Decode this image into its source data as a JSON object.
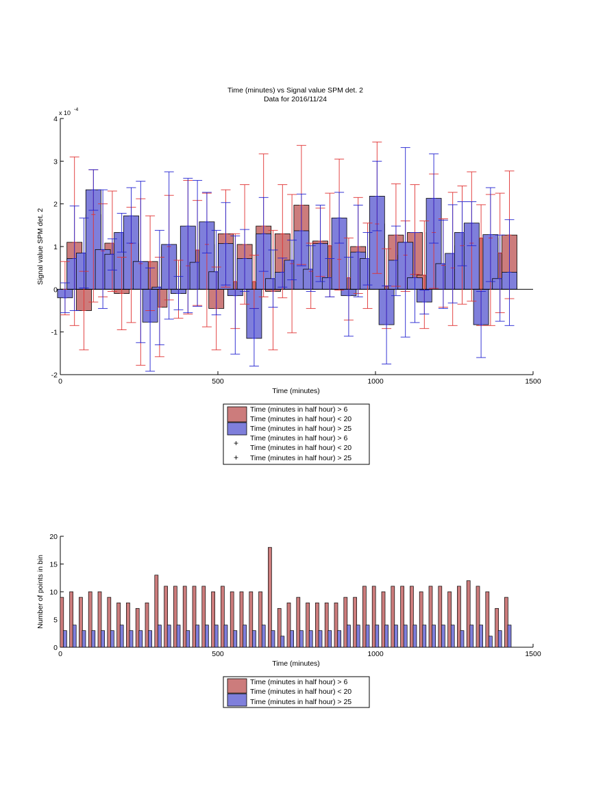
{
  "chart_data": [
    {
      "type": "bar",
      "title": "Time (minutes) vs Signal value SPM det. 2",
      "subtitle": "Data for 2016/11/24",
      "xlabel": "Time (minutes)",
      "ylabel": "Signal value SPM det. 2",
      "exponent_label": "x 10",
      "exponent_power": "-4",
      "xlim": [
        0,
        1500
      ],
      "ylim": [
        -2,
        4
      ],
      "y_scale_note": "values in units of 1e-4",
      "xticks": [
        0,
        500,
        1000,
        1500
      ],
      "yticks": [
        -2,
        -1,
        0,
        1,
        2,
        3,
        4
      ],
      "grid": false,
      "legend_position": "below",
      "series": [
        {
          "name": "Time (minutes in half hour) > 6 Time (minutes in half hour) < 20",
          "color": "#cc7c7c",
          "errorbar_color": "#e03030",
          "x": [
            15,
            45,
            75,
            105,
            135,
            165,
            195,
            225,
            255,
            285,
            315,
            345,
            375,
            405,
            435,
            465,
            495,
            525,
            555,
            585,
            615,
            645,
            675,
            705,
            735,
            765,
            795,
            825,
            855,
            885,
            915,
            945,
            975,
            1005,
            1035,
            1065,
            1095,
            1125,
            1155,
            1185,
            1215,
            1245,
            1275,
            1305,
            1335,
            1365,
            1395,
            1425
          ],
          "values": [
            0.0,
            1.1,
            -0.5,
            1.75,
            0.9,
            1.08,
            -0.1,
            1.07,
            0.6,
            0.65,
            -0.42,
            1.0,
            -0.1,
            0.55,
            0.92,
            1.05,
            -0.45,
            1.3,
            0.18,
            1.05,
            0.18,
            1.48,
            -0.05,
            1.3,
            0.6,
            1.97,
            0.42,
            1.13,
            1.02,
            0.7,
            0.27,
            1.0,
            0.72,
            1.53,
            0.07,
            1.27,
            0.8,
            1.33,
            0.33,
            1.33,
            0.56,
            0.5,
            1.02,
            1.08,
            1.2,
            1.2,
            0.85,
            1.27
          ],
          "err_low": [
            -0.6,
            -0.85,
            -1.42,
            -0.3,
            -0.18,
            -0.05,
            -0.95,
            -0.78,
            -1.78,
            -0.5,
            -1.58,
            -0.25,
            -0.68,
            -0.58,
            -0.38,
            -0.88,
            -1.42,
            0.05,
            -0.92,
            -0.35,
            -0.45,
            -0.18,
            -1.42,
            -0.2,
            -1.02,
            0.58,
            -0.45,
            0.3,
            -0.18,
            -0.02,
            -0.72,
            -0.1,
            -0.45,
            0.37,
            -0.92,
            0.07,
            -0.05,
            0.35,
            -0.92,
            0.02,
            -0.42,
            -0.85,
            -0.35,
            -0.28,
            -0.85,
            -0.85,
            -0.55,
            -0.22
          ],
          "err_high": [
            0.65,
            3.1,
            0.42,
            2.8,
            2.0,
            2.3,
            0.75,
            1.92,
            2.12,
            1.72,
            0.75,
            2.2,
            0.68,
            2.55,
            2.08,
            2.25,
            0.52,
            2.33,
            1.3,
            2.45,
            0.8,
            3.17,
            1.38,
            2.45,
            2.22,
            3.37,
            1.08,
            1.9,
            2.25,
            3.05,
            1.2,
            2.15,
            1.55,
            3.45,
            0.95,
            2.47,
            1.6,
            2.45,
            1.6,
            2.7,
            1.65,
            2.27,
            2.42,
            2.75,
            1.98,
            2.22,
            2.25,
            2.77
          ]
        },
        {
          "name": "Time (minutes in half hour) > 25",
          "color": "#7f7fdb",
          "errorbar_color": "#2020d0",
          "x": [
            15,
            45,
            75,
            105,
            135,
            165,
            195,
            225,
            255,
            285,
            315,
            345,
            375,
            405,
            435,
            465,
            495,
            525,
            555,
            585,
            615,
            645,
            675,
            705,
            735,
            765,
            795,
            825,
            855,
            885,
            915,
            945,
            975,
            1005,
            1035,
            1065,
            1095,
            1125,
            1155,
            1185,
            1215,
            1245,
            1275,
            1305,
            1335,
            1365,
            1395,
            1425
          ],
          "values": [
            -0.2,
            0.72,
            0.85,
            2.33,
            0.93,
            0.82,
            1.33,
            1.72,
            0.65,
            -0.77,
            0.05,
            1.05,
            -0.1,
            1.48,
            0.63,
            1.58,
            0.41,
            1.07,
            -0.15,
            0.72,
            -1.15,
            1.3,
            0.25,
            0.4,
            0.68,
            1.37,
            0.47,
            1.07,
            0.27,
            1.67,
            -0.15,
            0.87,
            0.72,
            2.18,
            -0.83,
            0.68,
            1.1,
            0.27,
            -0.3,
            2.13,
            0.6,
            0.84,
            1.33,
            1.55,
            -0.83,
            1.28,
            0.25,
            0.4
          ],
          "err_low": [
            -0.55,
            -0.5,
            0.03,
            1.85,
            -0.45,
            0.45,
            0.87,
            1.08,
            -1.25,
            -1.92,
            -1.3,
            -0.7,
            -0.48,
            -0.55,
            -0.4,
            0.85,
            -0.6,
            0.1,
            -1.52,
            -0.05,
            -1.8,
            0.42,
            -0.42,
            0.05,
            0.22,
            0.55,
            -0.05,
            0.18,
            -0.18,
            1.08,
            -1.1,
            -0.18,
            0.1,
            1.37,
            -1.75,
            -0.15,
            -1.12,
            -0.78,
            -0.58,
            1.08,
            -0.45,
            -0.32,
            0.55,
            1.02,
            -1.6,
            0.18,
            -0.75,
            -0.85
          ],
          "err_high": [
            0.15,
            1.95,
            1.67,
            2.8,
            2.33,
            1.18,
            1.78,
            2.38,
            2.53,
            0.5,
            1.38,
            2.75,
            0.3,
            2.6,
            2.55,
            2.27,
            1.38,
            2.03,
            1.25,
            1.4,
            -0.45,
            2.15,
            0.92,
            0.73,
            1.15,
            2.23,
            1.02,
            1.97,
            0.72,
            2.27,
            0.75,
            1.97,
            1.33,
            3.0,
            0.08,
            1.48,
            3.32,
            1.33,
            -0.02,
            3.17,
            1.62,
            1.98,
            2.05,
            2.05,
            -0.05,
            2.38,
            1.27,
            1.63
          ]
        }
      ],
      "legend": [
        "Time (minutes in half hour) > 6",
        "Time (minutes in half hour) < 20",
        "Time (minutes in half hour) > 25",
        "Time (minutes in half hour) > 6",
        "Time (minutes in half hour) < 20",
        "Time (minutes in half hour) > 25"
      ]
    },
    {
      "type": "bar",
      "title": "",
      "xlabel": "Time (minutes)",
      "ylabel": "Number of points in bin",
      "xlim": [
        0,
        1500
      ],
      "ylim": [
        0,
        20
      ],
      "xticks": [
        0,
        500,
        1000,
        1500
      ],
      "yticks": [
        0,
        5,
        10,
        15,
        20
      ],
      "grid": false,
      "legend_position": "below",
      "series": [
        {
          "name": "Time (minutes in half hour) > 6 Time (minutes in half hour) < 20",
          "color": "#cc7c7c",
          "x": [
            5,
            35,
            65,
            95,
            125,
            155,
            185,
            215,
            245,
            275,
            305,
            335,
            365,
            395,
            425,
            455,
            485,
            515,
            545,
            575,
            605,
            635,
            665,
            695,
            725,
            755,
            785,
            815,
            845,
            875,
            905,
            935,
            965,
            995,
            1025,
            1055,
            1085,
            1115,
            1145,
            1175,
            1205,
            1235,
            1265,
            1295,
            1325,
            1355,
            1385,
            1415
          ],
          "values": [
            9,
            10,
            9,
            10,
            10,
            9,
            8,
            8,
            7,
            8,
            13,
            11,
            11,
            11,
            11,
            11,
            10,
            11,
            10,
            10,
            10,
            10,
            18,
            7,
            8,
            9,
            8,
            8,
            8,
            8,
            9,
            9,
            11,
            11,
            10,
            11,
            11,
            11,
            10,
            11,
            11,
            10,
            11,
            12,
            11,
            10,
            7,
            9
          ]
        },
        {
          "name": "Time (minutes in half hour) > 25",
          "color": "#7f7fdb",
          "x": [
            15,
            45,
            75,
            105,
            135,
            165,
            195,
            225,
            255,
            285,
            315,
            345,
            375,
            405,
            435,
            465,
            495,
            525,
            555,
            585,
            615,
            645,
            675,
            705,
            735,
            765,
            795,
            825,
            855,
            885,
            915,
            945,
            975,
            1005,
            1035,
            1065,
            1095,
            1125,
            1155,
            1185,
            1215,
            1245,
            1275,
            1305,
            1335,
            1365,
            1395,
            1425
          ],
          "values": [
            3,
            4,
            3,
            3,
            3,
            3,
            4,
            3,
            3,
            3,
            4,
            4,
            4,
            3,
            4,
            4,
            4,
            4,
            3,
            4,
            3,
            4,
            3,
            2,
            3,
            3,
            3,
            3,
            3,
            3,
            4,
            4,
            4,
            4,
            4,
            4,
            4,
            4,
            4,
            4,
            4,
            4,
            3,
            4,
            4,
            2,
            3,
            4
          ]
        }
      ],
      "legend": [
        "Time (minutes in half hour) > 6",
        "Time (minutes in half hour) < 20",
        "Time (minutes in half hour) > 25"
      ]
    }
  ]
}
